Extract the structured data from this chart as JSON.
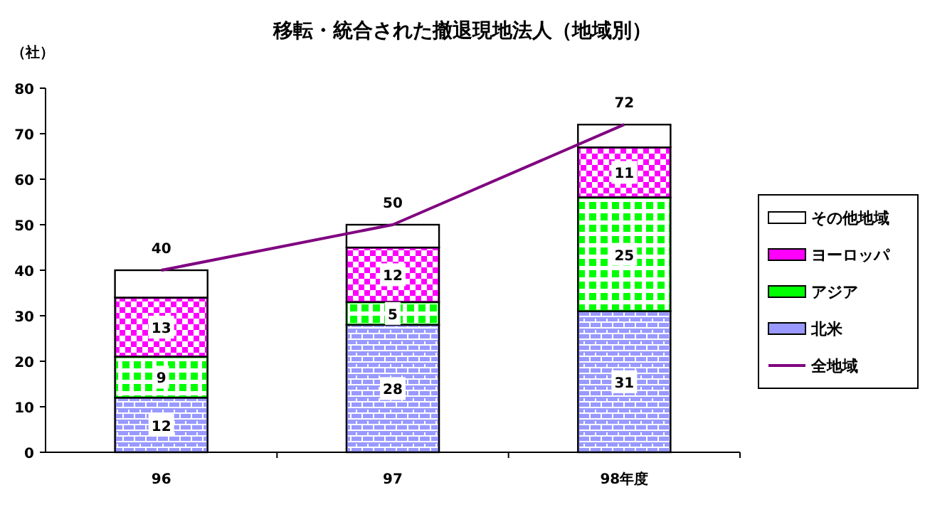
{
  "chart_data": {
    "type": "bar",
    "title": "移転・統合された撤退現地法人（地域別）",
    "ylabel": "（社）",
    "categories": [
      "96",
      "97",
      "98年度"
    ],
    "stacked": true,
    "ylim": [
      0,
      80
    ],
    "yticks": [
      0,
      10,
      20,
      30,
      40,
      50,
      60,
      70,
      80
    ],
    "grid": false,
    "legend": "right",
    "series": [
      {
        "name": "北米",
        "color": "#9999ff",
        "values": [
          12,
          28,
          31
        ],
        "value_labels": [
          "12",
          "28",
          "31"
        ]
      },
      {
        "name": "アジア",
        "color": "#00ff00",
        "values": [
          9,
          5,
          25
        ],
        "value_labels": [
          "9",
          "5",
          "25"
        ]
      },
      {
        "name": "ヨーロッパ",
        "color": "#ff00ff",
        "values": [
          13,
          12,
          11
        ],
        "value_labels": [
          "13",
          "12",
          "11"
        ]
      },
      {
        "name": "その他地域",
        "color": "#ffffff",
        "values": [
          6,
          5,
          5
        ]
      },
      {
        "name": "全地域",
        "type": "line",
        "color": "#800080",
        "values": [
          40,
          50,
          72
        ]
      }
    ],
    "totals": [
      "40",
      "50",
      "72"
    ]
  }
}
